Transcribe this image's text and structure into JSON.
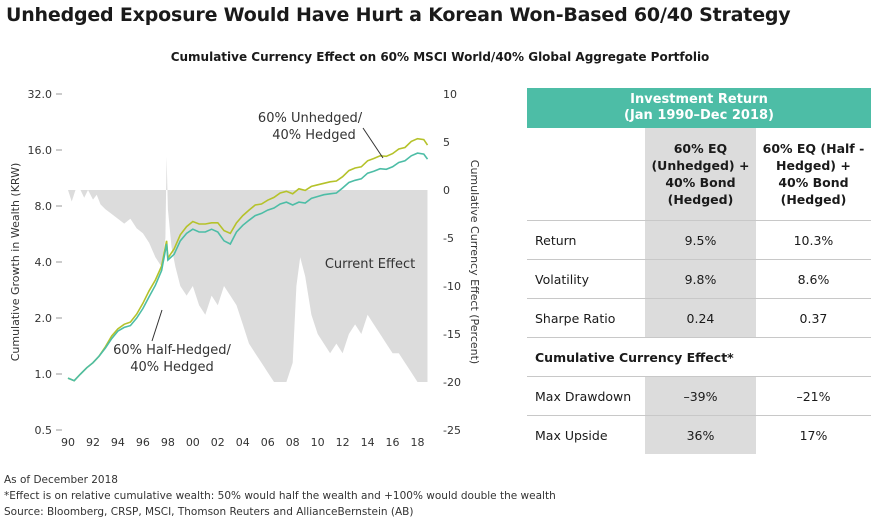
{
  "header": {
    "title": "Unhedged Exposure Would Have Hurt a Korean Won-Based 60/40 Strategy",
    "subtitle": "Cumulative Currency Effect on 60% MSCI World/40% Global Aggregate Portfolio"
  },
  "chart_data": {
    "type": "line",
    "title": "Cumulative Currency Effect on 60% MSCI World/40% Global Aggregate Portfolio",
    "x_ticks": [
      "90",
      "92",
      "94",
      "96",
      "98",
      "00",
      "02",
      "04",
      "06",
      "08",
      "10",
      "12",
      "14",
      "16",
      "18"
    ],
    "x_range": [
      1990,
      2019
    ],
    "left_axis": {
      "label": "Cumulative Growth in Wealth (KRW)",
      "scale": "log2",
      "ticks": [
        "0.5",
        "1.0",
        "2.0",
        "4.0",
        "8.0",
        "16.0",
        "32.0"
      ],
      "range": [
        0.5,
        32
      ]
    },
    "right_axis": {
      "label": "Cumulative Currency Effect (Percent)",
      "ticks": [
        "10",
        "5",
        "0",
        "-5",
        "-10",
        "-15",
        "-20",
        "-25"
      ],
      "range": [
        -25,
        10
      ]
    },
    "series": [
      {
        "name": "60% Unhedged/40% Hedged",
        "color": "#b5c22a",
        "points": [
          [
            1990.0,
            0.95
          ],
          [
            1990.5,
            0.92
          ],
          [
            1991.0,
            1.0
          ],
          [
            1991.5,
            1.08
          ],
          [
            1992.0,
            1.15
          ],
          [
            1992.5,
            1.25
          ],
          [
            1993.0,
            1.4
          ],
          [
            1993.5,
            1.6
          ],
          [
            1994.0,
            1.75
          ],
          [
            1994.5,
            1.85
          ],
          [
            1995.0,
            1.9
          ],
          [
            1995.5,
            2.1
          ],
          [
            1996.0,
            2.4
          ],
          [
            1996.5,
            2.8
          ],
          [
            1997.0,
            3.2
          ],
          [
            1997.5,
            3.8
          ],
          [
            1997.9,
            5.2
          ],
          [
            1998.0,
            4.2
          ],
          [
            1998.5,
            4.7
          ],
          [
            1999.0,
            5.6
          ],
          [
            1999.5,
            6.2
          ],
          [
            2000.0,
            6.6
          ],
          [
            2000.5,
            6.4
          ],
          [
            2001.0,
            6.4
          ],
          [
            2001.5,
            6.5
          ],
          [
            2002.0,
            6.5
          ],
          [
            2002.5,
            5.9
          ],
          [
            2003.0,
            5.7
          ],
          [
            2003.5,
            6.5
          ],
          [
            2004.0,
            7.1
          ],
          [
            2004.5,
            7.6
          ],
          [
            2005.0,
            8.1
          ],
          [
            2005.5,
            8.2
          ],
          [
            2006.0,
            8.6
          ],
          [
            2006.5,
            8.9
          ],
          [
            2007.0,
            9.4
          ],
          [
            2007.5,
            9.6
          ],
          [
            2008.0,
            9.3
          ],
          [
            2008.5,
            9.9
          ],
          [
            2009.0,
            9.7
          ],
          [
            2009.5,
            10.2
          ],
          [
            2010.0,
            10.4
          ],
          [
            2010.5,
            10.6
          ],
          [
            2011.0,
            10.8
          ],
          [
            2011.5,
            10.9
          ],
          [
            2012.0,
            11.5
          ],
          [
            2012.5,
            12.4
          ],
          [
            2013.0,
            12.8
          ],
          [
            2013.5,
            13.0
          ],
          [
            2014.0,
            14.0
          ],
          [
            2014.5,
            14.4
          ],
          [
            2015.0,
            14.9
          ],
          [
            2015.5,
            14.8
          ],
          [
            2016.0,
            15.3
          ],
          [
            2016.5,
            16.2
          ],
          [
            2017.0,
            16.5
          ],
          [
            2017.5,
            17.8
          ],
          [
            2018.0,
            18.4
          ],
          [
            2018.5,
            18.2
          ],
          [
            2018.8,
            17.0
          ]
        ]
      },
      {
        "name": "60% Half-Hedged/40% Hedged",
        "color": "#4dbda6",
        "points": [
          [
            1990.0,
            0.95
          ],
          [
            1990.5,
            0.92
          ],
          [
            1991.0,
            1.0
          ],
          [
            1991.5,
            1.08
          ],
          [
            1992.0,
            1.15
          ],
          [
            1992.5,
            1.25
          ],
          [
            1993.0,
            1.38
          ],
          [
            1993.5,
            1.55
          ],
          [
            1994.0,
            1.7
          ],
          [
            1994.5,
            1.78
          ],
          [
            1995.0,
            1.82
          ],
          [
            1995.5,
            2.0
          ],
          [
            1996.0,
            2.25
          ],
          [
            1996.5,
            2.6
          ],
          [
            1997.0,
            3.0
          ],
          [
            1997.5,
            3.6
          ],
          [
            1997.9,
            5.0
          ],
          [
            1998.0,
            4.1
          ],
          [
            1998.5,
            4.4
          ],
          [
            1999.0,
            5.2
          ],
          [
            1999.5,
            5.7
          ],
          [
            2000.0,
            6.0
          ],
          [
            2000.5,
            5.8
          ],
          [
            2001.0,
            5.8
          ],
          [
            2001.5,
            6.0
          ],
          [
            2002.0,
            5.8
          ],
          [
            2002.5,
            5.2
          ],
          [
            2003.0,
            5.0
          ],
          [
            2003.5,
            5.8
          ],
          [
            2004.0,
            6.3
          ],
          [
            2004.5,
            6.7
          ],
          [
            2005.0,
            7.1
          ],
          [
            2005.5,
            7.3
          ],
          [
            2006.0,
            7.6
          ],
          [
            2006.5,
            7.8
          ],
          [
            2007.0,
            8.2
          ],
          [
            2007.5,
            8.4
          ],
          [
            2008.0,
            8.1
          ],
          [
            2008.5,
            8.4
          ],
          [
            2009.0,
            8.3
          ],
          [
            2009.5,
            8.8
          ],
          [
            2010.0,
            9.0
          ],
          [
            2010.5,
            9.2
          ],
          [
            2011.0,
            9.3
          ],
          [
            2011.5,
            9.4
          ],
          [
            2012.0,
            10.0
          ],
          [
            2012.5,
            10.7
          ],
          [
            2013.0,
            11.0
          ],
          [
            2013.5,
            11.2
          ],
          [
            2014.0,
            12.0
          ],
          [
            2014.5,
            12.3
          ],
          [
            2015.0,
            12.7
          ],
          [
            2015.5,
            12.6
          ],
          [
            2016.0,
            13.0
          ],
          [
            2016.5,
            13.7
          ],
          [
            2017.0,
            14.0
          ],
          [
            2017.5,
            14.9
          ],
          [
            2018.0,
            15.4
          ],
          [
            2018.5,
            15.2
          ],
          [
            2018.8,
            14.3
          ]
        ]
      },
      {
        "name": "Current Effect",
        "type": "area",
        "color": "#dcdcdc",
        "axis": "right",
        "points": [
          [
            1990.0,
            0
          ],
          [
            1990.3,
            -1.2
          ],
          [
            1990.6,
            0
          ],
          [
            1991.0,
            0
          ],
          [
            1991.3,
            -0.8
          ],
          [
            1991.6,
            0
          ],
          [
            1992.0,
            -1
          ],
          [
            1992.3,
            -0.5
          ],
          [
            1992.6,
            -1.5
          ],
          [
            1993.0,
            -2
          ],
          [
            1993.5,
            -2.5
          ],
          [
            1994.0,
            -3
          ],
          [
            1994.5,
            -3.5
          ],
          [
            1995.0,
            -3
          ],
          [
            1995.5,
            -4
          ],
          [
            1996.0,
            -4.5
          ],
          [
            1996.5,
            -5.5
          ],
          [
            1997.0,
            -7
          ],
          [
            1997.5,
            -8
          ],
          [
            1997.8,
            -5
          ],
          [
            1997.9,
            3.5
          ],
          [
            1998.0,
            -2
          ],
          [
            1998.3,
            -6
          ],
          [
            1998.6,
            -8
          ],
          [
            1999.0,
            -10
          ],
          [
            1999.5,
            -11
          ],
          [
            2000.0,
            -10
          ],
          [
            2000.5,
            -12
          ],
          [
            2001.0,
            -13
          ],
          [
            2001.5,
            -11
          ],
          [
            2002.0,
            -12
          ],
          [
            2002.5,
            -10
          ],
          [
            2003.0,
            -11
          ],
          [
            2003.5,
            -12
          ],
          [
            2004.0,
            -14
          ],
          [
            2004.5,
            -16
          ],
          [
            2005.0,
            -17
          ],
          [
            2005.5,
            -18
          ],
          [
            2006.0,
            -19
          ],
          [
            2006.5,
            -20
          ],
          [
            2007.0,
            -20
          ],
          [
            2007.5,
            -20
          ],
          [
            2008.0,
            -18
          ],
          [
            2008.3,
            -10
          ],
          [
            2008.6,
            -7
          ],
          [
            2009.0,
            -9
          ],
          [
            2009.5,
            -13
          ],
          [
            2010.0,
            -15
          ],
          [
            2010.5,
            -16
          ],
          [
            2011.0,
            -17
          ],
          [
            2011.5,
            -16
          ],
          [
            2012.0,
            -17
          ],
          [
            2012.5,
            -15
          ],
          [
            2013.0,
            -14
          ],
          [
            2013.5,
            -15
          ],
          [
            2014.0,
            -13
          ],
          [
            2014.5,
            -14
          ],
          [
            2015.0,
            -15
          ],
          [
            2015.5,
            -16
          ],
          [
            2016.0,
            -17
          ],
          [
            2016.5,
            -17
          ],
          [
            2017.0,
            -18
          ],
          [
            2017.5,
            -19
          ],
          [
            2018.0,
            -20
          ],
          [
            2018.8,
            -20
          ]
        ]
      }
    ],
    "annotations": {
      "unhedged": [
        "60% Unhedged/",
        "40% Hedged"
      ],
      "half_hedged": [
        "60% Half-Hedged/",
        "40% Hedged"
      ],
      "current_effect": "Current Effect"
    }
  },
  "table": {
    "header_lines": [
      "Investment Return",
      "(Jan 1990–Dec 2018)"
    ],
    "col1_lines": [
      "60% EQ",
      "(Unhedged) +",
      "40% Bond",
      "(Hedged)"
    ],
    "col2_lines": [
      "60% EQ (Half -",
      "Hedged) +",
      "40% Bond",
      "(Hedged)"
    ],
    "rows": [
      {
        "label": "Return",
        "v1": "9.5%",
        "v2": "10.3%"
      },
      {
        "label": "Volatility",
        "v1": "9.8%",
        "v2": "8.6%"
      },
      {
        "label": "Sharpe Ratio",
        "v1": "0.24",
        "v2": "0.37"
      }
    ],
    "section_title": "Cumulative Currency Effect*",
    "rows2": [
      {
        "label": "Max Drawdown",
        "v1": "–39%",
        "v2": "–21%"
      },
      {
        "label": "Max Upside",
        "v1": "36%",
        "v2": "17%"
      }
    ]
  },
  "footer": {
    "as_of": "As of December 2018",
    "note": "*Effect is on relative cumulative wealth: 50% would half the wealth and +100% would double the wealth",
    "source": "Source: Bloomberg, CRSP, MSCI, Thomson Reuters and AllianceBernstein (AB)"
  }
}
